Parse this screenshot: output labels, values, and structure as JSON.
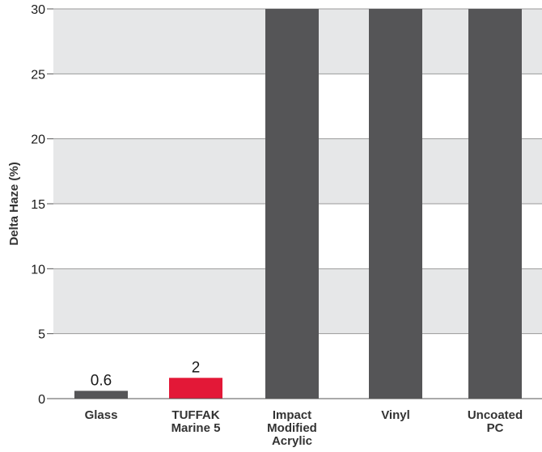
{
  "chart_data": {
    "type": "bar",
    "title": "",
    "xlabel": "",
    "ylabel": "Delta Haze (%)",
    "ylim": [
      0,
      30
    ],
    "yticks": [
      0,
      5,
      10,
      15,
      20,
      25,
      30
    ],
    "grid": true,
    "categories": [
      [
        "Glass"
      ],
      [
        "TUFFAK",
        "Marine 5"
      ],
      [
        "Impact",
        "Modified",
        "Acrylic"
      ],
      [
        "Vinyl"
      ],
      [
        "Uncoated",
        "PC"
      ]
    ],
    "values": [
      0.6,
      1.6,
      30,
      30,
      30
    ],
    "data_labels": [
      "0.6",
      "2",
      "",
      "",
      ""
    ],
    "colors": [
      "#555557",
      "#e31837",
      "#555557",
      "#555557",
      "#555557"
    ],
    "band_color": "#e6e7e8"
  }
}
